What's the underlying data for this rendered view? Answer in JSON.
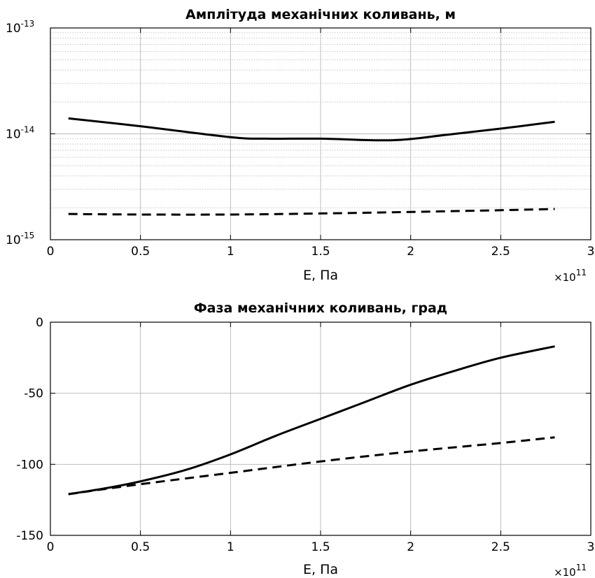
{
  "chart_data": [
    {
      "type": "line",
      "title": "Амплітуда механічних коливань, м",
      "xlabel": "E, Па",
      "ylabel": "",
      "x_multiplier": "×10",
      "x_multiplier_exp": "11",
      "xlim": [
        0,
        3
      ],
      "ylim": [
        1e-15,
        1e-13
      ],
      "yscale": "log",
      "grid": true,
      "xticks": [
        "0",
        "0.5",
        "1",
        "1.5",
        "2",
        "2.5",
        "3"
      ],
      "yticks": [
        {
          "base": "10",
          "exp": "-13",
          "value": 1e-13
        },
        {
          "base": "10",
          "exp": "-14",
          "value": 1e-14
        },
        {
          "base": "10",
          "exp": "-15",
          "value": 1e-15
        }
      ],
      "series": [
        {
          "style": "solid",
          "color": "#000000",
          "x": [
            0.1,
            0.5,
            1.0,
            1.2,
            1.5,
            1.9,
            2.2,
            2.5,
            2.8
          ],
          "y": [
            1.4e-14,
            1.18e-14,
            9.3e-15,
            9e-15,
            9e-15,
            8.7e-15,
            9.8e-15,
            1.12e-14,
            1.3e-14
          ]
        },
        {
          "style": "dashed",
          "color": "#000000",
          "x": [
            0.1,
            0.5,
            1.0,
            1.5,
            2.0,
            2.5,
            2.8
          ],
          "y": [
            1.75e-15,
            1.73e-15,
            1.73e-15,
            1.77e-15,
            1.83e-15,
            1.9e-15,
            1.95e-15
          ]
        }
      ]
    },
    {
      "type": "line",
      "title": "Фаза механічних коливань, град",
      "xlabel": "E, Па",
      "ylabel": "",
      "x_multiplier": "×10",
      "x_multiplier_exp": "11",
      "xlim": [
        0,
        3
      ],
      "ylim": [
        -150,
        0
      ],
      "yscale": "linear",
      "grid": true,
      "xticks": [
        "0",
        "0.5",
        "1",
        "1.5",
        "2",
        "2.5",
        "3"
      ],
      "yticks": [
        {
          "label": "0",
          "value": 0
        },
        {
          "label": "-50",
          "value": -50
        },
        {
          "label": "-100",
          "value": -100
        },
        {
          "label": "-150",
          "value": -150
        }
      ],
      "series": [
        {
          "style": "solid",
          "color": "#000000",
          "x": [
            0.1,
            0.3,
            0.5,
            0.75,
            1.0,
            1.25,
            1.5,
            1.75,
            2.0,
            2.25,
            2.5,
            2.8
          ],
          "y": [
            -121,
            -117,
            -112,
            -104,
            -93,
            -80,
            -68,
            -56,
            -44,
            -34,
            -25,
            -17
          ]
        },
        {
          "style": "dashed",
          "color": "#000000",
          "x": [
            0.1,
            0.5,
            1.0,
            1.5,
            2.0,
            2.5,
            2.8
          ],
          "y": [
            -121,
            -114,
            -106,
            -98,
            -91,
            -85,
            -81
          ]
        }
      ]
    }
  ]
}
